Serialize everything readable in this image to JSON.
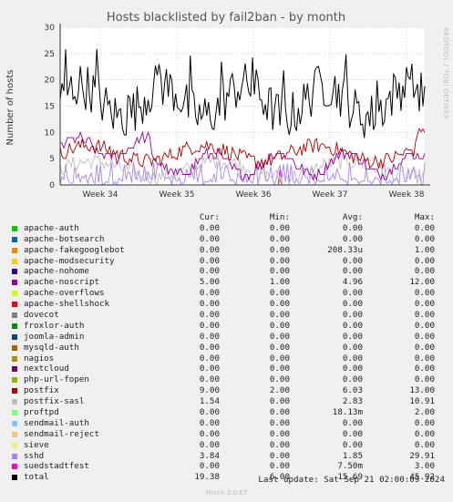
{
  "chart_data": {
    "type": "line",
    "title": "Hosts blacklisted by fail2ban - by month",
    "ylabel": "Number of hosts",
    "side_label": "RRDTOOL / TOBI OETIKER",
    "ylim": [
      0,
      30
    ],
    "yticks": [
      0,
      5,
      10,
      15,
      20,
      25,
      30
    ],
    "xticks": [
      "Week 34",
      "Week 35",
      "Week 36",
      "Week 37",
      "Week 38"
    ],
    "grid": true,
    "series": [
      {
        "name": "apache-auth",
        "color": "#00cc00",
        "cur": "0.00",
        "min": "0.00",
        "avg": "0.00",
        "max": "0.00",
        "shape": "zero"
      },
      {
        "name": "apache-botsearch",
        "color": "#0066b3",
        "cur": "0.00",
        "min": "0.00",
        "avg": "0.00",
        "max": "0.00",
        "shape": "zero"
      },
      {
        "name": "apache-fakegooglebot",
        "color": "#ff8000",
        "cur": "0.00",
        "min": "0.00",
        "avg": "208.33u",
        "max": "1.00",
        "shape": "spike"
      },
      {
        "name": "apache-modsecurity",
        "color": "#ffcc00",
        "cur": "0.00",
        "min": "0.00",
        "avg": "0.00",
        "max": "0.00",
        "shape": "zero"
      },
      {
        "name": "apache-nohome",
        "color": "#330099",
        "cur": "0.00",
        "min": "0.00",
        "avg": "0.00",
        "max": "0.00",
        "shape": "zero"
      },
      {
        "name": "apache-noscript",
        "color": "#990099",
        "cur": "5.00",
        "min": "1.00",
        "avg": "4.96",
        "max": "12.00",
        "shape": "noscript"
      },
      {
        "name": "apache-overflows",
        "color": "#ccff00",
        "cur": "0.00",
        "min": "0.00",
        "avg": "0.00",
        "max": "0.00",
        "shape": "zero"
      },
      {
        "name": "apache-shellshock",
        "color": "#ff0000",
        "cur": "0.00",
        "min": "0.00",
        "avg": "0.00",
        "max": "0.00",
        "shape": "zero"
      },
      {
        "name": "dovecot",
        "color": "#808080",
        "cur": "0.00",
        "min": "0.00",
        "avg": "0.00",
        "max": "0.00",
        "shape": "zero"
      },
      {
        "name": "froxlor-auth",
        "color": "#008f00",
        "cur": "0.00",
        "min": "0.00",
        "avg": "0.00",
        "max": "0.00",
        "shape": "zero"
      },
      {
        "name": "joomla-admin",
        "color": "#00487d",
        "cur": "0.00",
        "min": "0.00",
        "avg": "0.00",
        "max": "0.00",
        "shape": "zero"
      },
      {
        "name": "mysqld-auth",
        "color": "#b35a00",
        "cur": "0.00",
        "min": "0.00",
        "avg": "0.00",
        "max": "0.00",
        "shape": "zero"
      },
      {
        "name": "nagios",
        "color": "#b38f00",
        "cur": "0.00",
        "min": "0.00",
        "avg": "0.00",
        "max": "0.00",
        "shape": "zero"
      },
      {
        "name": "nextcloud",
        "color": "#6b006b",
        "cur": "0.00",
        "min": "0.00",
        "avg": "0.00",
        "max": "0.00",
        "shape": "zero"
      },
      {
        "name": "php-url-fopen",
        "color": "#8fb300",
        "cur": "0.00",
        "min": "0.00",
        "avg": "0.00",
        "max": "0.00",
        "shape": "zero"
      },
      {
        "name": "postfix",
        "color": "#b30000",
        "cur": "9.00",
        "min": "2.00",
        "avg": "6.03",
        "max": "13.00",
        "shape": "postfix"
      },
      {
        "name": "postfix-sasl",
        "color": "#bebebe",
        "cur": "1.54",
        "min": "0.00",
        "avg": "2.83",
        "max": "10.91",
        "shape": "sasl"
      },
      {
        "name": "proftpd",
        "color": "#80ff80",
        "cur": "0.00",
        "min": "0.00",
        "avg": "18.13m",
        "max": "2.00",
        "shape": "spike"
      },
      {
        "name": "sendmail-auth",
        "color": "#80c9ff",
        "cur": "0.00",
        "min": "0.00",
        "avg": "0.00",
        "max": "0.00",
        "shape": "zero"
      },
      {
        "name": "sendmail-reject",
        "color": "#ffc080",
        "cur": "0.00",
        "min": "0.00",
        "avg": "0.00",
        "max": "0.00",
        "shape": "zero"
      },
      {
        "name": "sieve",
        "color": "#ffe680",
        "cur": "0.00",
        "min": "0.00",
        "avg": "0.00",
        "max": "0.00",
        "shape": "zero"
      },
      {
        "name": "sshd",
        "color": "#aa80ff",
        "cur": "3.84",
        "min": "0.00",
        "avg": "1.85",
        "max": "29.91",
        "shape": "sshd"
      },
      {
        "name": "suedstadtfest",
        "color": "#ee00cc",
        "cur": "0.00",
        "min": "0.00",
        "avg": "7.50m",
        "max": "3.00",
        "shape": "spike"
      },
      {
        "name": "total",
        "color": "#000000",
        "cur": "19.38",
        "min": "6.00",
        "avg": "15.69",
        "max": "45.92",
        "shape": "total"
      }
    ]
  },
  "legend_header": {
    "cur": "Cur:",
    "min": "Min:",
    "avg": "Avg:",
    "max": "Max:"
  },
  "last_update": "Last update: Sat Sep 21 02:00:09 2024",
  "munin_version": "Munin 2.0.67"
}
